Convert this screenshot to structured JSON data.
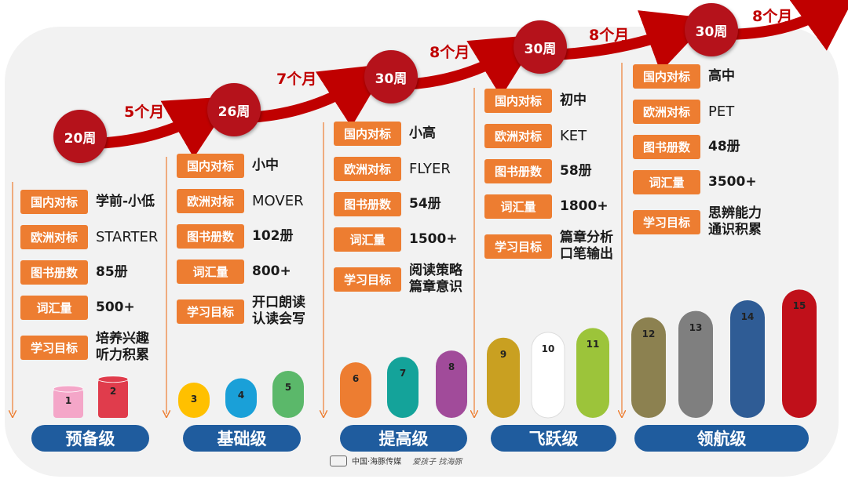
{
  "colors": {
    "tag_orange": "#ed7d31",
    "circle_red": "#b5121b",
    "arrow_red": "#c00000",
    "level_blue": "#1f5c9e",
    "guide": "#ed7d31"
  },
  "labels": {
    "domestic": "国内对标",
    "europe": "欧洲对标",
    "books": "图书册数",
    "vocab": "词汇量",
    "goal": "学习目标"
  },
  "levels": [
    {
      "name": "预备级",
      "domestic": "学前-小低",
      "europe": "STARTER",
      "books": "85册",
      "vocab": "500+",
      "goal": [
        "培养兴趣",
        "听力积累"
      ],
      "cylinders": [
        {
          "n": "1",
          "color": "#f4a6c8",
          "height": 0.12
        },
        {
          "n": "2",
          "color": "#e03c4c",
          "height": 0.16
        }
      ]
    },
    {
      "name": "基础级",
      "domestic": "小中",
      "europe": "MOVER",
      "books": "102册",
      "vocab": "800+",
      "goal": [
        "开口朗读",
        "认读会写"
      ],
      "cylinders": [
        {
          "n": "3",
          "color": "#ffc000",
          "height": 0.33
        },
        {
          "n": "4",
          "color": "#1aa0d8",
          "height": 0.37
        },
        {
          "n": "5",
          "color": "#5bb86a",
          "height": 0.44
        }
      ]
    },
    {
      "name": "提高级",
      "domestic": "小高",
      "europe": "FLYER",
      "books": "54册",
      "vocab": "1500+",
      "goal": [
        "阅读策略",
        "篇章意识"
      ],
      "cylinders": [
        {
          "n": "6",
          "color": "#ed7d31",
          "height": 0.52
        },
        {
          "n": "7",
          "color": "#14a39a",
          "height": 0.57
        },
        {
          "n": "8",
          "color": "#a14b9a",
          "height": 0.63
        }
      ]
    },
    {
      "name": "飞跃级",
      "domestic": "初中",
      "europe": "KET",
      "books": "58册",
      "vocab": "1800+",
      "goal": [
        "篇章分析",
        "口笔输出"
      ],
      "cylinders": [
        {
          "n": "9",
          "color": "#c9a021",
          "height": 0.75
        },
        {
          "n": "10",
          "color": "#ffffff",
          "height": 0.8
        },
        {
          "n": "11",
          "color": "#9cc43a",
          "height": 0.84
        }
      ]
    },
    {
      "name": "领航级",
      "domestic": "高中",
      "europe": "PET",
      "books": "48册",
      "vocab": "3500+",
      "goal": [
        "思辨能力",
        "通识积累"
      ],
      "cylinders": [
        {
          "n": "12",
          "color": "#8c8150",
          "height": 0.94
        },
        {
          "n": "13",
          "color": "#7f7f7f",
          "height": 1.0
        },
        {
          "n": "14",
          "color": "#2f5c95",
          "height": 1.1
        },
        {
          "n": "15",
          "color": "#c0101a",
          "height": 1.2
        }
      ]
    }
  ],
  "weeks": [
    "20周",
    "26周",
    "30周",
    "30周",
    "30周"
  ],
  "durations": [
    "5个月",
    "7个月",
    "8个月",
    "8个月",
    "8个月"
  ],
  "footer": {
    "brand": "中国·海豚传媒",
    "slogan": "爱孩子  找海豚"
  }
}
